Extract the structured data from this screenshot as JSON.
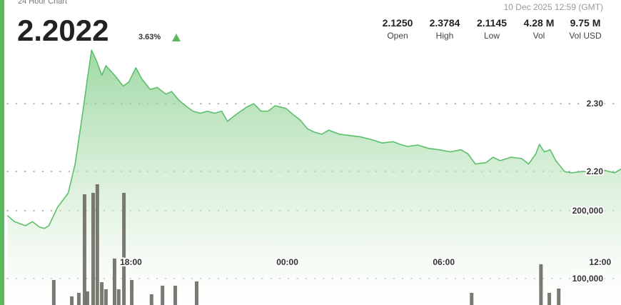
{
  "header": {
    "title": "24 Hour Chart",
    "price": "2.2022",
    "change": "3.63%",
    "timestamp": "10 Dec 2025 12:59 (GMT)",
    "stats": [
      {
        "value": "2.1250",
        "label": "Open"
      },
      {
        "value": "2.3784",
        "label": "High"
      },
      {
        "value": "2.1145",
        "label": "Low"
      },
      {
        "value": "4.28 M",
        "label": "Vol"
      },
      {
        "value": "9.75 M",
        "label": "Vol USD"
      }
    ]
  },
  "chart_data": {
    "type": "line",
    "xlim": [
      13.25,
      36.8
    ],
    "xticks": [
      {
        "value": 18,
        "label": "18:00"
      },
      {
        "value": 24,
        "label": "00:00"
      },
      {
        "value": 30,
        "label": "06:00"
      },
      {
        "value": 36,
        "label": "12:00"
      }
    ],
    "ylim": [
      2.003,
      2.453
    ],
    "yticks": [
      {
        "value": 2.2,
        "label": "2.20"
      },
      {
        "value": 2.3,
        "label": "2.30"
      }
    ],
    "y2lim": [
      61000,
      510500
    ],
    "y2ticks": [
      {
        "value": 100000,
        "label": "100,000"
      },
      {
        "value": 200000,
        "label": "200,000"
      }
    ],
    "grid": true,
    "series": [
      {
        "color": "#5cbf6c",
        "x": [
          13.26,
          13.53,
          13.95,
          14.22,
          14.49,
          14.68,
          14.85,
          15.18,
          15.59,
          15.86,
          16.14,
          16.33,
          16.49,
          16.68,
          16.88,
          17.04,
          17.37,
          17.7,
          17.92,
          18.19,
          18.41,
          18.74,
          19.01,
          19.34,
          19.56,
          19.84,
          20.16,
          20.38,
          20.66,
          20.93,
          21.21,
          21.48,
          21.7,
          22.03,
          22.44,
          22.71,
          22.99,
          23.26,
          23.53,
          23.95,
          24.22,
          24.49,
          24.77,
          25.04,
          25.32,
          25.59,
          26.0,
          26.41,
          26.82,
          27.23,
          27.64,
          28.05,
          28.33,
          28.6,
          29.01,
          29.42,
          29.84,
          30.25,
          30.66,
          30.93,
          31.21,
          31.62,
          31.89,
          32.16,
          32.58,
          32.99,
          33.26,
          33.53,
          33.67,
          33.86,
          34.08,
          34.3,
          34.63,
          34.9,
          35.32,
          35.73,
          36.14,
          36.55,
          36.82
        ],
        "values": [
          2.135,
          2.126,
          2.12,
          2.126,
          2.118,
          2.116,
          2.12,
          2.147,
          2.168,
          2.211,
          2.284,
          2.337,
          2.379,
          2.363,
          2.342,
          2.356,
          2.342,
          2.326,
          2.332,
          2.353,
          2.337,
          2.321,
          2.324,
          2.314,
          2.318,
          2.305,
          2.295,
          2.289,
          2.286,
          2.289,
          2.286,
          2.289,
          2.274,
          2.284,
          2.295,
          2.3,
          2.289,
          2.289,
          2.297,
          2.293,
          2.284,
          2.276,
          2.263,
          2.258,
          2.255,
          2.261,
          2.255,
          2.253,
          2.251,
          2.247,
          2.242,
          2.244,
          2.24,
          2.237,
          2.239,
          2.234,
          2.232,
          2.229,
          2.232,
          2.226,
          2.211,
          2.213,
          2.221,
          2.216,
          2.221,
          2.219,
          2.211,
          2.226,
          2.24,
          2.229,
          2.232,
          2.216,
          2.2,
          2.198,
          2.2,
          2.2,
          2.202,
          2.198,
          2.204
        ]
      },
      {
        "type": "bar",
        "axis": "y2",
        "color": "#6b6b63",
        "x": [
          15.04,
          15.73,
          16.0,
          16.22,
          16.33,
          16.55,
          16.71,
          16.88,
          17.04,
          17.37,
          17.53,
          17.73,
          18.03,
          18.79,
          19.21,
          19.7,
          20.52,
          31.07,
          33.73,
          34.05,
          34.41
        ],
        "values": [
          97900,
          73700,
          78900,
          224200,
          81100,
          226300,
          238900,
          94700,
          84200,
          129500,
          84200,
          226300,
          97900,
          76800,
          89500,
          89500,
          95800,
          78900,
          121100,
          78900,
          85300
        ]
      }
    ]
  }
}
